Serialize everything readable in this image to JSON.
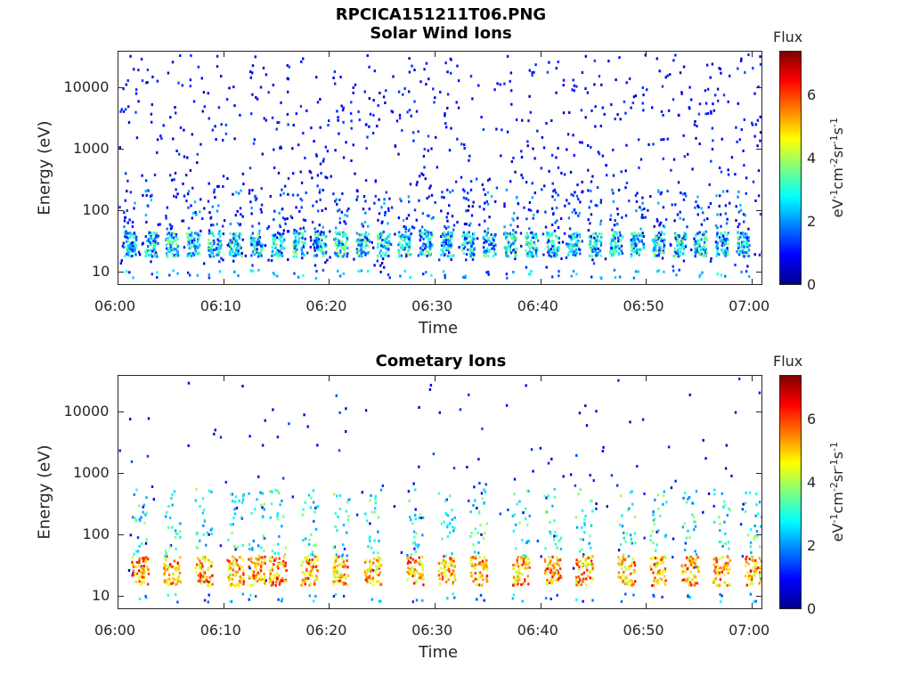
{
  "figure": {
    "title_line1": "RPCICA151211T06.PNG"
  },
  "colorbar": {
    "title": "Flux",
    "label_html": "eV<sup>-1</sup>cm<sup>-2</sup>sr<sup>-1</sup>s<sup>-1</sup>",
    "ticks": [
      "0",
      "2",
      "4",
      "6"
    ],
    "range": [
      0,
      7.4
    ],
    "colormap": "jet"
  },
  "chart_data": [
    {
      "type": "heatmap",
      "title": "Solar Wind Ions",
      "xlabel": "Time",
      "ylabel": "Energy (eV)",
      "x_range": [
        "06:00",
        "07:01"
      ],
      "y_range": [
        6,
        40000
      ],
      "y_scale": "log",
      "x_ticks": [
        "06:00",
        "06:10",
        "06:20",
        "06:30",
        "06:40",
        "06:50",
        "07:00"
      ],
      "y_ticks": [
        "10",
        "100",
        "1000",
        "10000"
      ],
      "color_range": [
        0,
        7.4
      ],
      "dominant_band": {
        "energy_eV": [
          18,
          45
        ],
        "flux": [
          1,
          4
        ]
      },
      "burst_times": [
        "06:01",
        "06:03",
        "06:05",
        "06:07",
        "06:09",
        "06:11",
        "06:13",
        "06:15",
        "06:17",
        "06:19",
        "06:21",
        "06:23",
        "06:25",
        "06:27",
        "06:29",
        "06:31",
        "06:33",
        "06:35",
        "06:37",
        "06:39",
        "06:41",
        "06:43",
        "06:45",
        "06:47",
        "06:49",
        "06:51",
        "06:53",
        "06:55",
        "06:57",
        "06:59"
      ]
    },
    {
      "type": "heatmap",
      "title": "Cometary Ions",
      "xlabel": "Time",
      "ylabel": "Energy (eV)",
      "x_range": [
        "06:00",
        "07:01"
      ],
      "y_range": [
        6,
        40000
      ],
      "y_scale": "log",
      "x_ticks": [
        "06:00",
        "06:10",
        "06:20",
        "06:30",
        "06:40",
        "06:50",
        "07:00"
      ],
      "y_ticks": [
        "10",
        "100",
        "1000",
        "10000"
      ],
      "color_range": [
        0,
        7.4
      ],
      "dominant_band": {
        "energy_eV": [
          15,
          45
        ],
        "flux": [
          4,
          6.5
        ]
      },
      "burst_times": [
        "06:02",
        "06:05",
        "06:08",
        "06:11",
        "06:13",
        "06:15",
        "06:18",
        "06:21",
        "06:24",
        "06:28",
        "06:31",
        "06:34",
        "06:38",
        "06:41",
        "06:44",
        "06:48",
        "06:51",
        "06:54",
        "06:57",
        "07:00"
      ]
    }
  ]
}
